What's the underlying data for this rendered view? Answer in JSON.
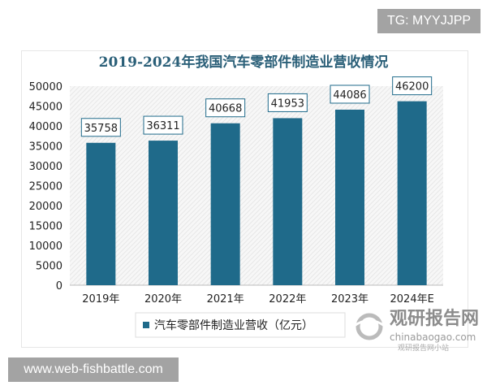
{
  "watermarks": {
    "tg": "TG: MYYJJPP",
    "site": "www.web-fishbattle.com",
    "brand": "观研报告网",
    "brand_url": "chinabaogao.com",
    "brand_small": "观研报告网小站"
  },
  "colors": {
    "bar": "#1f6a8a",
    "title": "#2a5f78",
    "label_border": "#1f6a8a"
  },
  "chart_data": {
    "type": "bar",
    "title": "2019-2024年我国汽车零部件制造业营收情况",
    "categories": [
      "2019年",
      "2020年",
      "2021年",
      "2022年",
      "2023年",
      "2024年E"
    ],
    "series": [
      {
        "name": "汽车零部件制造业营收（亿元）",
        "values": [
          35758,
          36311,
          40668,
          41953,
          44086,
          46200
        ]
      }
    ],
    "ylim": [
      0,
      50000
    ],
    "yticks": [
      0,
      5000,
      10000,
      15000,
      20000,
      25000,
      30000,
      35000,
      40000,
      45000,
      50000
    ],
    "legend": "bottom",
    "grid": false,
    "plot_background": "diagonal hatch"
  }
}
